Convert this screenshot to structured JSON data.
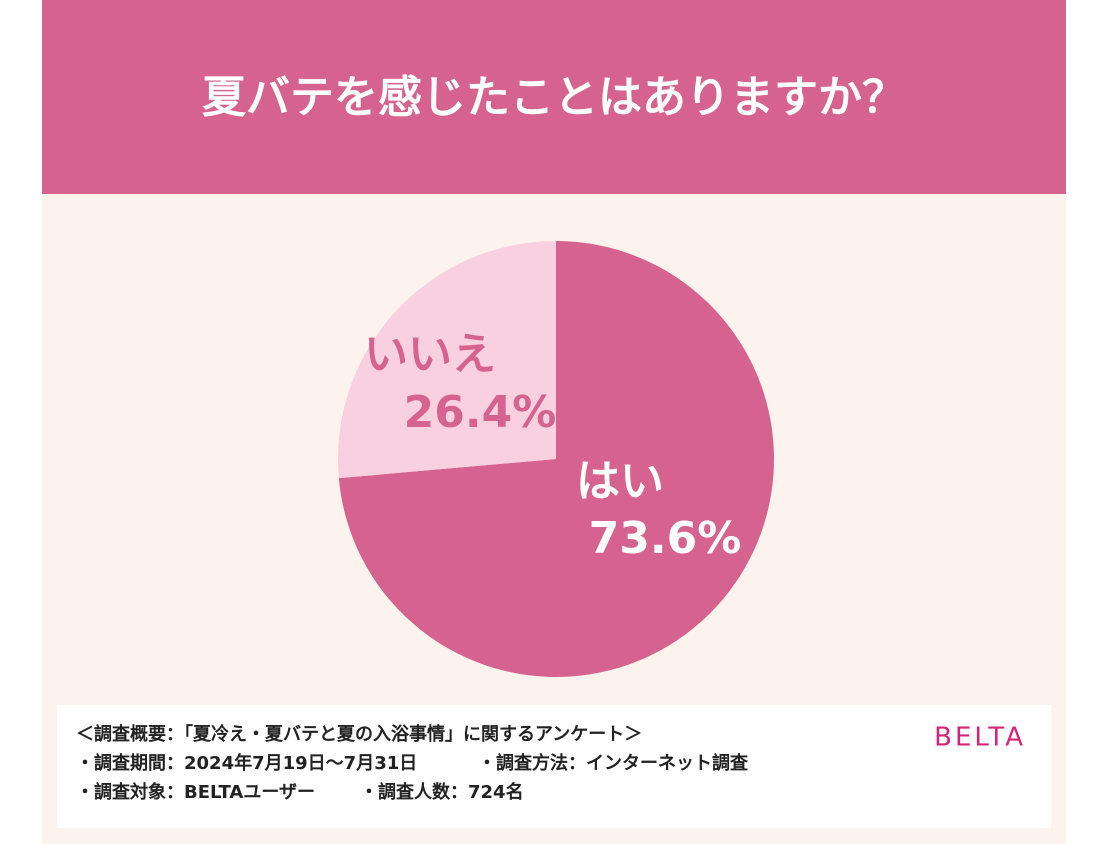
{
  "chart_data": {
    "type": "pie",
    "title": "夏バテを感じたことはありますか？",
    "categories": [
      "はい",
      "いいえ"
    ],
    "values": [
      73.6,
      26.4
    ],
    "value_labels": [
      "73.6%",
      "26.4%"
    ],
    "colors": [
      "#d6638f",
      "#f9d0e0"
    ],
    "notes": [
      [
        "＜調査概要：「夏冷え・夏バテと夏の入浴事情」に関するアンケート＞"
      ],
      [
        "・調査期間：2024年7月19日〜7月31日",
        "・調査方法：インターネット調査"
      ],
      [
        "・調査対象：BELTAユーザー",
        "・調査人数：724名"
      ]
    ],
    "brand": "BELTA"
  }
}
